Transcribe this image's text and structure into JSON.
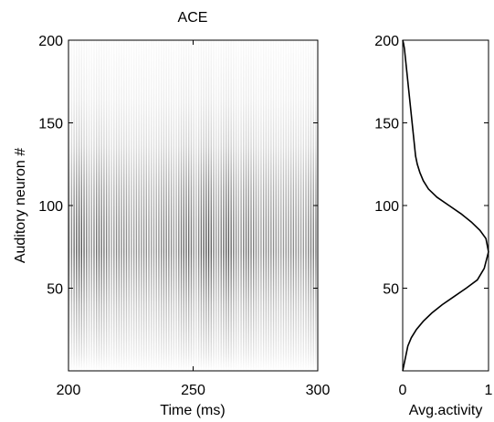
{
  "chart_data": [
    {
      "type": "heatmap",
      "title": "ACE",
      "xlabel": "Time (ms)",
      "ylabel": "Auditory neuron #",
      "xlim": [
        200,
        300
      ],
      "ylim": [
        0,
        200
      ],
      "xticks": [
        200,
        250,
        300
      ],
      "yticks": [
        50,
        100,
        150,
        200
      ],
      "grid": false,
      "colormap": "white-to-black (gray)",
      "stripe_period_ms": 1.0,
      "peak_neuron": 75
    },
    {
      "type": "line",
      "title": "",
      "xlabel": "Avg.activity",
      "ylabel": "",
      "xlim": [
        0,
        1
      ],
      "ylim": [
        0,
        200
      ],
      "xticks": [
        0,
        1
      ],
      "yticks": [
        50,
        100,
        150,
        200
      ],
      "grid": false,
      "series": [
        {
          "x": [
            0.0,
            0.02,
            0.04,
            0.06,
            0.1,
            0.16,
            0.24,
            0.34,
            0.46,
            0.6,
            0.74,
            0.87,
            0.95,
            1.0,
            0.97,
            0.9,
            0.8,
            0.68,
            0.54,
            0.4,
            0.3,
            0.24,
            0.2,
            0.17,
            0.15,
            0.13,
            0.11,
            0.09,
            0.07,
            0.05,
            0.03,
            0.02,
            0.01,
            0.0
          ],
          "y": [
            0,
            5,
            10,
            15,
            20,
            25,
            30,
            35,
            40,
            45,
            50,
            55,
            62,
            72,
            80,
            85,
            90,
            95,
            100,
            105,
            110,
            115,
            120,
            125,
            130,
            140,
            150,
            160,
            170,
            180,
            190,
            195,
            198,
            200
          ]
        }
      ]
    }
  ]
}
